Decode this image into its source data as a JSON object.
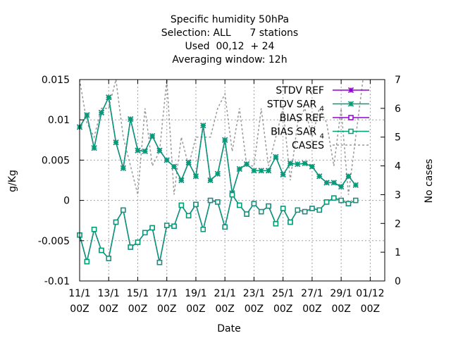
{
  "chart_data": {
    "type": "line",
    "title_lines": [
      "Specific humidity 50hPa",
      "Selection: ALL      7 stations",
      "Used  00,12  + 24",
      "Averaging window: 12h"
    ],
    "xlabel": "Date",
    "ylabel": "g/Kg",
    "y2label": "No cases",
    "xlim": [
      0,
      42
    ],
    "ylim": [
      -0.01,
      0.015
    ],
    "y2lim": [
      0,
      7
    ],
    "x_ticks": [
      0,
      4,
      8,
      12,
      16,
      20,
      24,
      28,
      32,
      36,
      40
    ],
    "x_tick_labels": [
      [
        "11/1",
        "00Z"
      ],
      [
        "13/1",
        "00Z"
      ],
      [
        "15/1",
        "00Z"
      ],
      [
        "17/1",
        "00Z"
      ],
      [
        "19/1",
        "00Z"
      ],
      [
        "21/1",
        "00Z"
      ],
      [
        "23/1",
        "00Z"
      ],
      [
        "25/1",
        "00Z"
      ],
      [
        "27/1",
        "00Z"
      ],
      [
        "29/1",
        "00Z"
      ],
      [
        "01/12",
        "00Z"
      ]
    ],
    "y_ticks": [
      -0.01,
      -0.005,
      0,
      0.005,
      0.01,
      0.015
    ],
    "y_tick_labels": [
      "-0.01",
      "-0.005",
      "0",
      "0.005",
      "0.01",
      "0.015"
    ],
    "y2_ticks": [
      0,
      1,
      2,
      3,
      4,
      5,
      6,
      7
    ],
    "y2_tick_labels": [
      "0",
      "1",
      "2",
      "3",
      "4",
      "5",
      "6",
      "7"
    ],
    "grid": true,
    "legend_position": "top-right",
    "series": [
      {
        "name": "STDV REF",
        "color": "#9400d3",
        "marker": "star",
        "axis": "y",
        "values": [
          0.0091,
          0.0106,
          0.0065,
          0.0109,
          0.0128,
          0.0072,
          0.004,
          0.0101,
          0.0062,
          0.0061,
          0.008,
          0.0062,
          0.005,
          0.0042,
          0.0025,
          0.0047,
          0.003,
          0.0093,
          0.0025,
          0.0033,
          0.0075,
          0.0009,
          0.0039,
          0.0045,
          0.0037,
          0.0037,
          0.0037,
          0.0054,
          0.0032,
          0.0046,
          0.0045,
          0.0046,
          0.0042,
          0.003,
          0.0022,
          0.0022,
          0.0017,
          0.003,
          0.0019
        ]
      },
      {
        "name": "STDV SAR",
        "name_subscript": "4",
        "color": "#009e73",
        "marker": "star",
        "axis": "y",
        "values": [
          0.0091,
          0.0106,
          0.0065,
          0.0109,
          0.0128,
          0.0072,
          0.004,
          0.0101,
          0.0062,
          0.0061,
          0.008,
          0.0062,
          0.005,
          0.0042,
          0.0025,
          0.0047,
          0.003,
          0.0093,
          0.0025,
          0.0033,
          0.0075,
          0.0009,
          0.0039,
          0.0045,
          0.0037,
          0.0037,
          0.0037,
          0.0054,
          0.0032,
          0.0046,
          0.0045,
          0.0046,
          0.0042,
          0.003,
          0.0022,
          0.0022,
          0.0017,
          0.003,
          0.0019
        ]
      },
      {
        "name": "BIAS REF",
        "color": "#9400d3",
        "marker": "square",
        "axis": "y",
        "values": [
          -0.0043,
          -0.0076,
          -0.0036,
          -0.0062,
          -0.0072,
          -0.0027,
          -0.0012,
          -0.0058,
          -0.0052,
          -0.004,
          -0.0034,
          -0.0077,
          -0.0031,
          -0.0032,
          -0.0006,
          -0.0019,
          -0.0005,
          -0.0036,
          0.0,
          -0.0002,
          -0.0033,
          0.0007,
          -0.0006,
          -0.0017,
          -0.0004,
          -0.0014,
          -0.0007,
          -0.0029,
          -0.001,
          -0.0027,
          -0.0012,
          -0.0014,
          -0.001,
          -0.0012,
          -0.0002,
          0.0003,
          0.0,
          -0.0004,
          0.0
        ]
      },
      {
        "name": "BIAS SAR",
        "name_subscript": "4",
        "color": "#009e73",
        "marker": "square",
        "axis": "y",
        "values": [
          -0.0043,
          -0.0076,
          -0.0036,
          -0.0062,
          -0.0072,
          -0.0027,
          -0.0012,
          -0.0058,
          -0.0052,
          -0.004,
          -0.0034,
          -0.0077,
          -0.0031,
          -0.0032,
          -0.0006,
          -0.0019,
          -0.0005,
          -0.0036,
          0.0,
          -0.0002,
          -0.0033,
          0.0007,
          -0.0006,
          -0.0017,
          -0.0004,
          -0.0014,
          -0.0007,
          -0.0029,
          -0.001,
          -0.0027,
          -0.0012,
          -0.0014,
          -0.001,
          -0.0012,
          -0.0002,
          0.0003,
          0.0,
          -0.0004,
          0.0
        ]
      },
      {
        "name": "CASES",
        "color": "#999999",
        "marker": "none",
        "dashed": true,
        "axis": "y2",
        "values": [
          7,
          5.5,
          5,
          6,
          6,
          7,
          5,
          4,
          3,
          6,
          4,
          4.5,
          7,
          3,
          5,
          4,
          5,
          5,
          5,
          6,
          6.5,
          4.5,
          6,
          4,
          4,
          6,
          4,
          5,
          6,
          3.5,
          5.5,
          6,
          5,
          6,
          5.5,
          4,
          6,
          3,
          5,
          7
        ]
      }
    ]
  }
}
